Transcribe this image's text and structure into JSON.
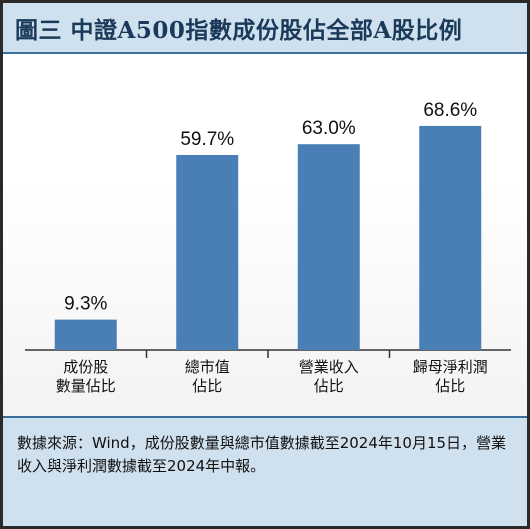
{
  "title": "圖三 中證A500指數成份股佔全部A股比例",
  "chart_data": {
    "type": "bar",
    "categories": [
      [
        "成份股",
        "數量佔比"
      ],
      [
        "總市值",
        "佔比"
      ],
      [
        "營業收入",
        "佔比"
      ],
      [
        "歸母淨利潤",
        "佔比"
      ]
    ],
    "values": [
      9.3,
      59.7,
      63.0,
      68.6
    ],
    "data_labels": [
      "9.3%",
      "59.7%",
      "63.0%",
      "68.6%"
    ],
    "ylim": [
      0,
      75
    ],
    "bar_color": "#4a7fb5",
    "grid": false
  },
  "source": "數據來源：Wind，成份股數量與總市值數據截至2024年10月15日，營業收入與淨利潤數據截至2024年中報。",
  "colors": {
    "header_bg": "#cfe0ee",
    "bar": "#4a7fb5",
    "axis": "#333333"
  }
}
